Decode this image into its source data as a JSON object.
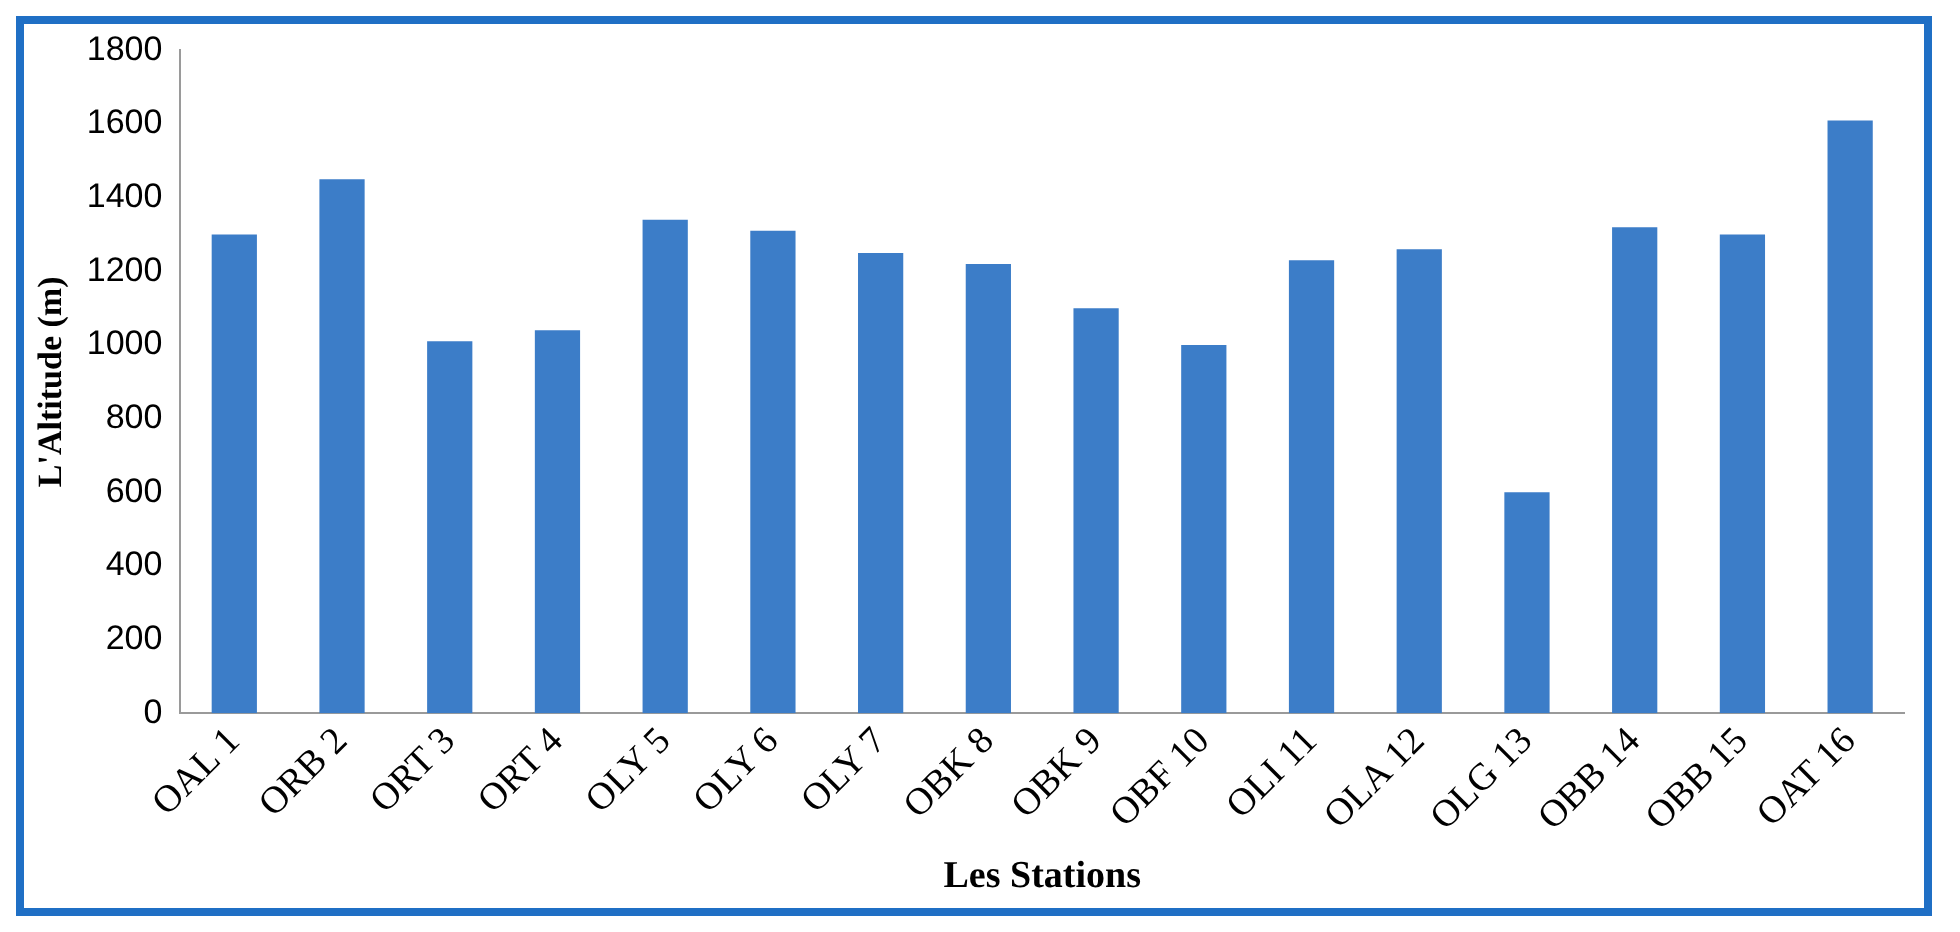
{
  "chart_data": {
    "type": "bar",
    "xlabel": "Les Stations",
    "ylabel": "L'Altitude (m)",
    "categories": [
      "OAL 1",
      "ORB 2",
      "ORT 3",
      "ORT 4",
      "OLY 5",
      "OLY 6",
      "OLY 7",
      "OBK 8",
      "OBK 9",
      "OBF 10",
      "OLI 11",
      "OLA 12",
      "OLG 13",
      "OBB 14",
      "OBB 15",
      "OAT 16"
    ],
    "values": [
      1300,
      1450,
      1010,
      1040,
      1340,
      1310,
      1250,
      1220,
      1100,
      1000,
      1230,
      1260,
      600,
      1320,
      1300,
      1610
    ],
    "color": "#3c7dc8",
    "ylim": [
      0,
      1800
    ],
    "yticks": [
      0,
      200,
      400,
      600,
      800,
      1000,
      1200,
      1400,
      1600,
      1800
    ],
    "grid": false
  }
}
